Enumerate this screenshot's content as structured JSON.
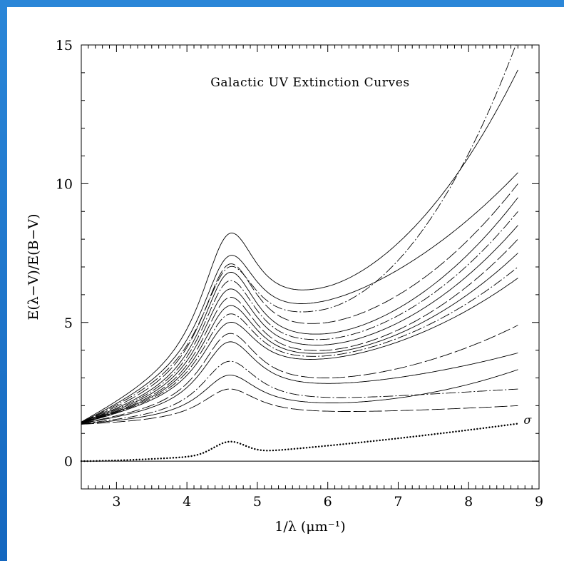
{
  "chart_data": {
    "type": "line",
    "title": "Galactic UV Extinction Curves",
    "xlabel": "1/λ (μm⁻¹)",
    "ylabel": "E(λ−V)/E(B−V)",
    "xlim": [
      2.5,
      9
    ],
    "ylim": [
      -1,
      15
    ],
    "x_ticks": [
      3,
      4,
      5,
      6,
      7,
      8,
      9
    ],
    "y_ticks": [
      0,
      5,
      10,
      15
    ],
    "grid": false,
    "zero_line": true,
    "x_range_curves": [
      2.5,
      8.7
    ],
    "annotation": "σ",
    "series": [
      {
        "values_at": {
          "2.5": 1.3,
          "4.6": 8.2,
          "6.0": 6.3,
          "8.7": 14.1
        }
      },
      {
        "values_at": {
          "2.5": 1.3,
          "4.6": 7.0,
          "6.0": 5.5,
          "8.7": 15.2
        }
      },
      {
        "values_at": {
          "2.5": 1.3,
          "4.6": 7.4,
          "6.0": 5.8,
          "8.7": 10.4
        }
      },
      {
        "values_at": {
          "2.5": 1.3,
          "4.6": 7.1,
          "6.0": 5.0,
          "8.7": 10.0
        }
      },
      {
        "values_at": {
          "2.5": 1.3,
          "4.6": 6.8,
          "6.0": 4.6,
          "8.7": 9.5
        }
      },
      {
        "values_at": {
          "2.5": 1.3,
          "4.6": 6.5,
          "6.0": 4.4,
          "8.7": 9.0
        }
      },
      {
        "values_at": {
          "2.5": 1.3,
          "4.6": 6.2,
          "6.0": 4.2,
          "8.7": 8.5
        }
      },
      {
        "values_at": {
          "2.5": 1.3,
          "4.6": 5.9,
          "6.0": 4.0,
          "8.7": 8.0
        }
      },
      {
        "values_at": {
          "2.5": 1.3,
          "4.6": 5.6,
          "6.0": 3.9,
          "8.7": 7.5
        }
      },
      {
        "values_at": {
          "2.5": 1.3,
          "4.6": 5.3,
          "6.0": 3.8,
          "8.7": 7.0
        }
      },
      {
        "values_at": {
          "2.5": 1.3,
          "4.6": 5.0,
          "6.0": 3.7,
          "8.7": 6.6
        }
      },
      {
        "values_at": {
          "2.5": 1.3,
          "4.6": 4.6,
          "6.0": 3.0,
          "8.7": 4.9
        }
      },
      {
        "values_at": {
          "2.5": 1.3,
          "4.6": 4.3,
          "6.0": 2.8,
          "8.7": 3.9
        }
      },
      {
        "values_at": {
          "2.5": 1.3,
          "4.6": 3.6,
          "6.0": 2.3,
          "8.7": 2.6
        }
      },
      {
        "values_at": {
          "2.5": 1.3,
          "4.6": 3.1,
          "6.0": 2.1,
          "8.7": 3.3
        }
      },
      {
        "values_at": {
          "2.5": 1.3,
          "4.6": 2.6,
          "6.0": 1.8,
          "8.7": 2.0
        }
      },
      {
        "name": "σ",
        "style": "dotted",
        "values_at": {
          "2.5": 0.0,
          "4.6": 0.65,
          "5.5": 0.55,
          "8.7": 1.5
        }
      }
    ]
  }
}
